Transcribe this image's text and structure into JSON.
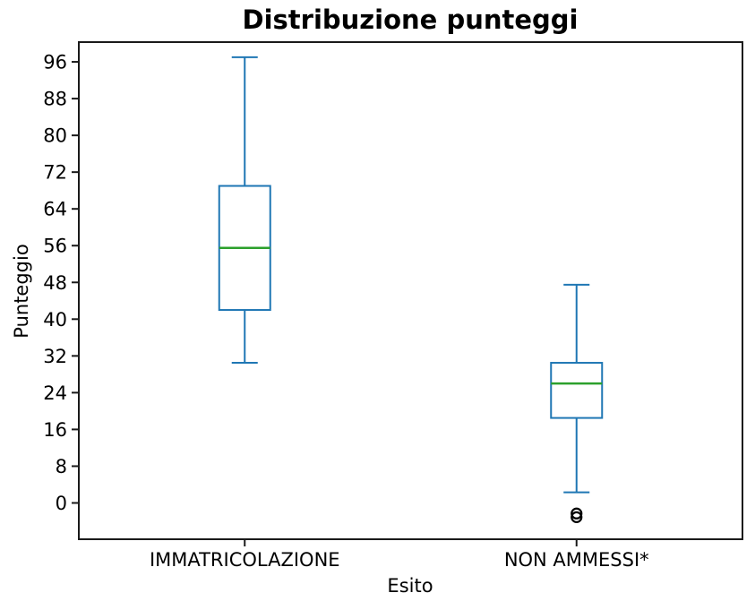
{
  "title": "Distribuzione punteggi",
  "chart_data": {
    "type": "boxplot",
    "title": "Distribuzione punteggi",
    "xlabel": "Esito",
    "ylabel": "Punteggio",
    "categories": [
      "IMMATRICOLAZIONE",
      "NON AMMESSI*"
    ],
    "yticks": [
      0,
      8,
      16,
      24,
      32,
      40,
      48,
      56,
      64,
      72,
      80,
      88,
      96
    ],
    "ylim": [
      -7.9,
      100.3
    ],
    "grid": false,
    "legend": null,
    "series": [
      {
        "name": "IMMATRICOLAZIONE",
        "whisker_low": 30.5,
        "q1": 42,
        "median": 55.5,
        "q3": 69,
        "whisker_high": 97,
        "outliers": []
      },
      {
        "name": "NON AMMESSI*",
        "whisker_low": 2.3,
        "q1": 18.5,
        "median": 26,
        "q3": 30.5,
        "whisker_high": 47.5,
        "outliers": [
          -2.3,
          -3.1
        ]
      }
    ],
    "colors": {
      "box": "#1f77b4",
      "median": "#2ca02c",
      "outlier": "#000000",
      "spine": "#1a1a1a",
      "text": "#000000"
    }
  }
}
